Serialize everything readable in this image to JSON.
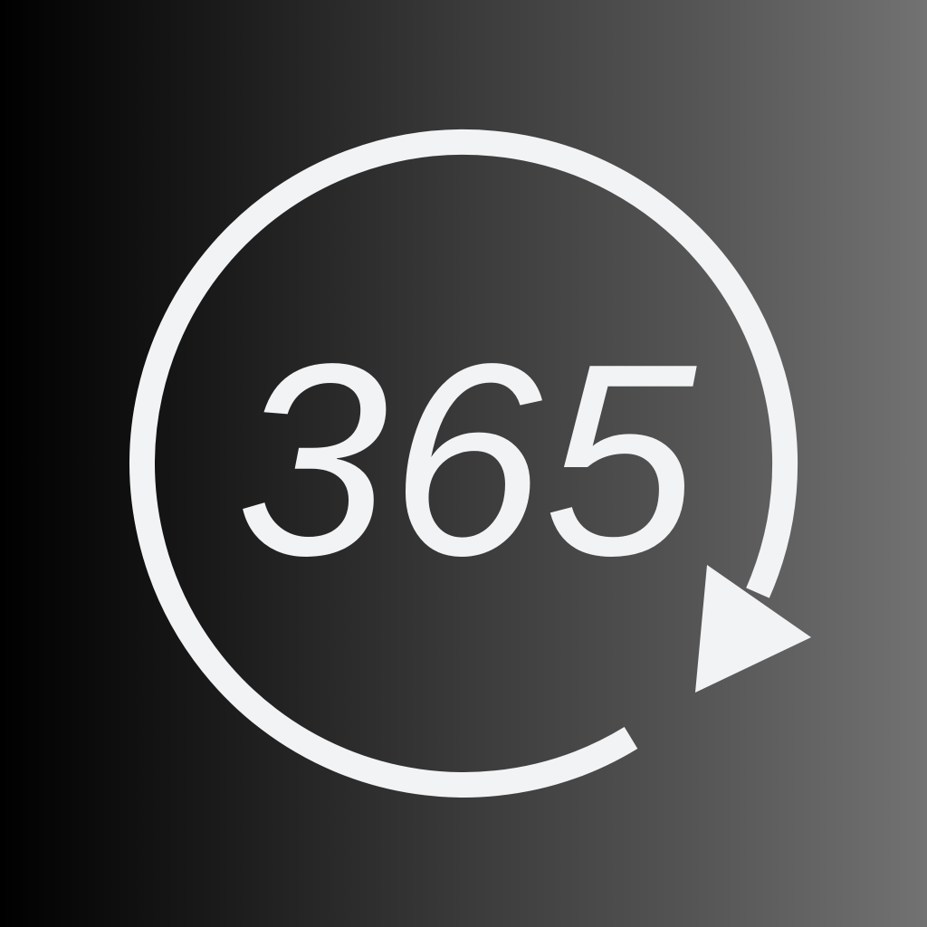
{
  "icon": {
    "label": "365",
    "symbol": "refresh-arrow-icon",
    "foreground_color": "#f2f3f5",
    "gradient_start_color": "#000000",
    "gradient_end_color": "#727272"
  }
}
